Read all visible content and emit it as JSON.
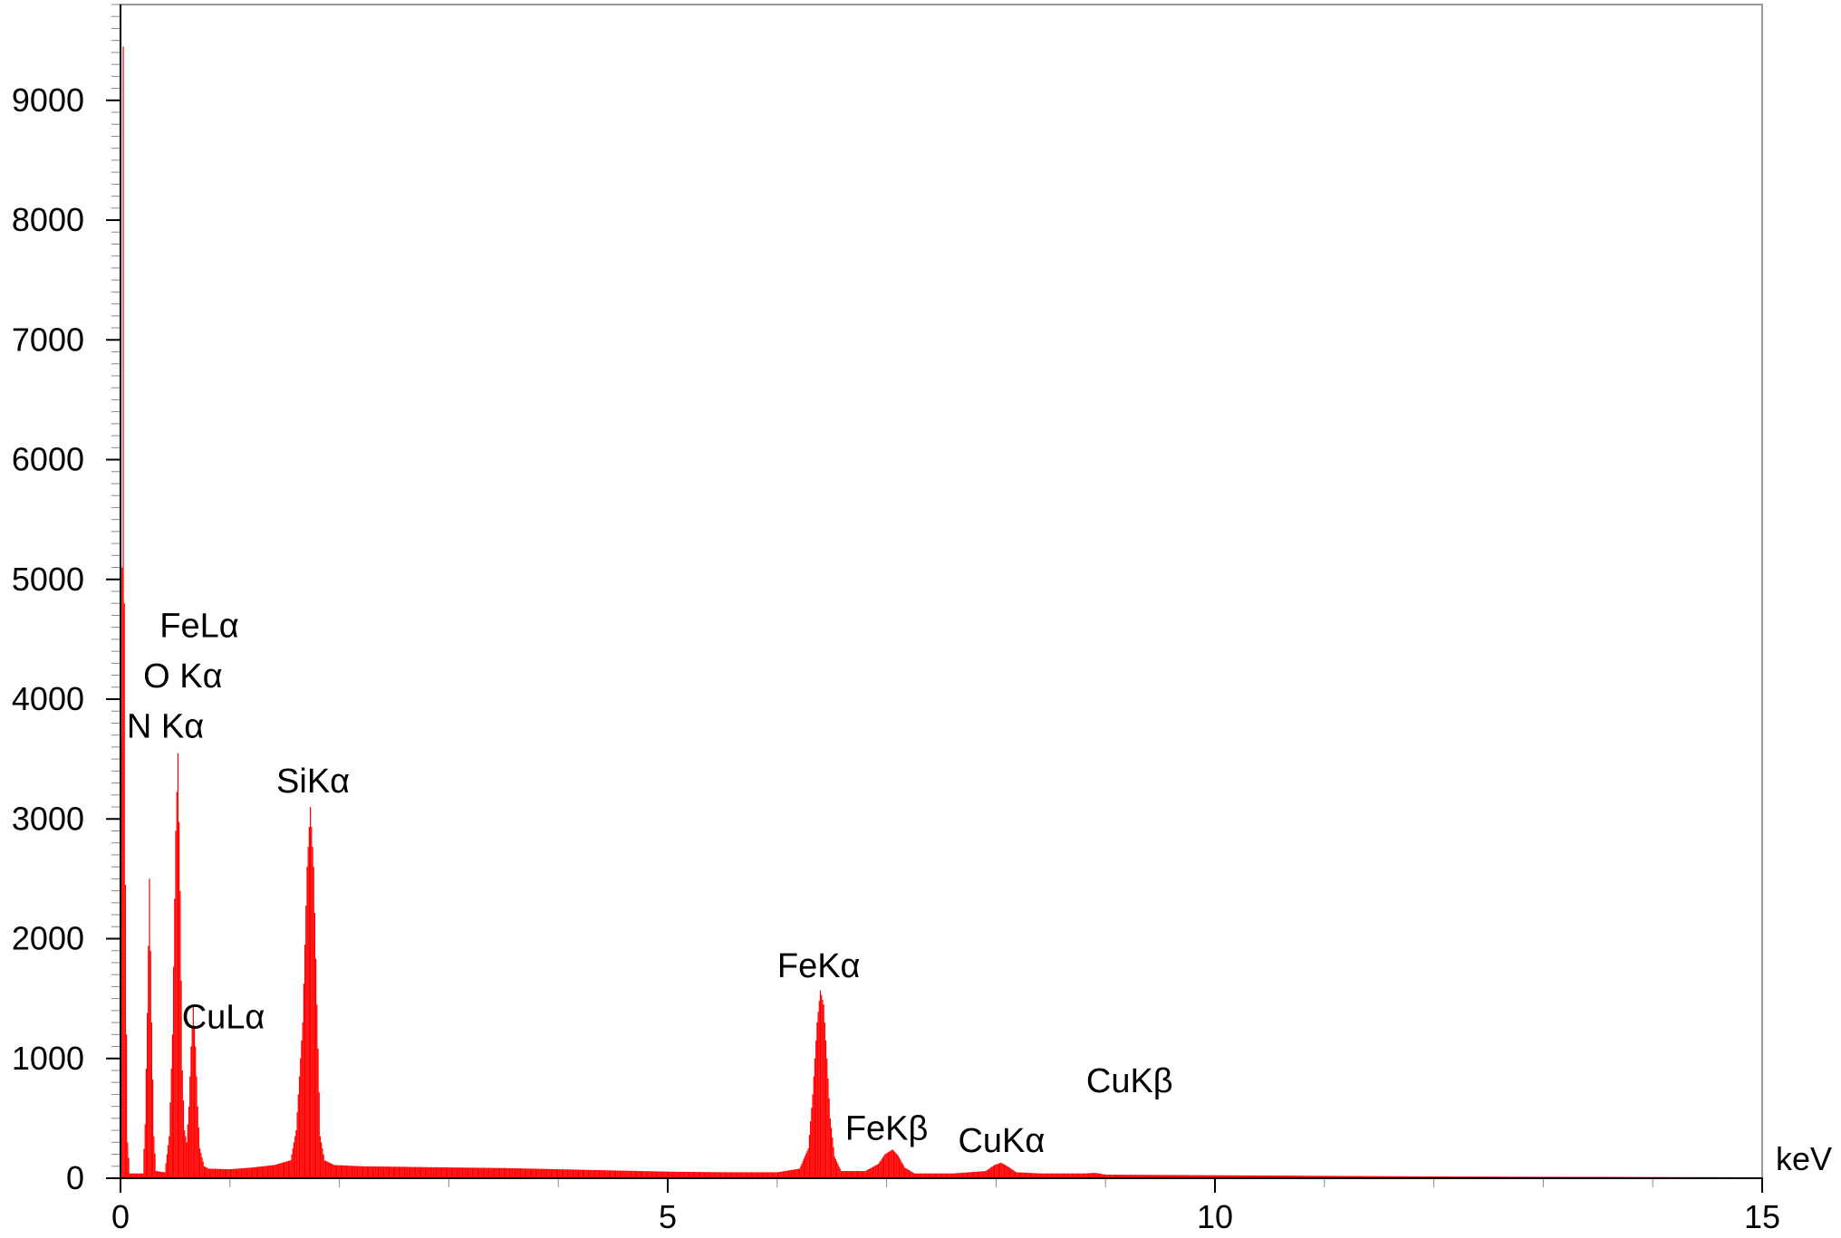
{
  "chart_data": {
    "type": "bar",
    "title": "",
    "xlabel": "keV",
    "ylabel": "",
    "xlim": [
      0,
      15
    ],
    "ylim": [
      0,
      9800
    ],
    "x_ticks": [
      {
        "value": 0,
        "label": "0"
      },
      {
        "value": 5,
        "label": "5"
      },
      {
        "value": 10,
        "label": "10"
      },
      {
        "value": 15,
        "label": "15"
      }
    ],
    "y_ticks": [
      {
        "value": 0,
        "label": "0"
      },
      {
        "value": 1000,
        "label": "1000"
      },
      {
        "value": 2000,
        "label": "2000"
      },
      {
        "value": 3000,
        "label": "3000"
      },
      {
        "value": 4000,
        "label": "4000"
      },
      {
        "value": 5000,
        "label": "5000"
      },
      {
        "value": 6000,
        "label": "6000"
      },
      {
        "value": 7000,
        "label": "7000"
      },
      {
        "value": 8000,
        "label": "8000"
      },
      {
        "value": 9000,
        "label": "9000"
      }
    ],
    "grid": false,
    "color": "#ff0000",
    "spectrum": [
      [
        0.0,
        3700
      ],
      [
        0.01,
        5100
      ],
      [
        0.02,
        9450
      ],
      [
        0.03,
        4800
      ],
      [
        0.04,
        2450
      ],
      [
        0.05,
        1200
      ],
      [
        0.06,
        300
      ],
      [
        0.08,
        40
      ],
      [
        0.2,
        40
      ],
      [
        0.22,
        450
      ],
      [
        0.24,
        1380
      ],
      [
        0.26,
        2500
      ],
      [
        0.28,
        1300
      ],
      [
        0.3,
        350
      ],
      [
        0.32,
        60
      ],
      [
        0.4,
        50
      ],
      [
        0.44,
        350
      ],
      [
        0.47,
        1200
      ],
      [
        0.5,
        2900
      ],
      [
        0.52,
        3550
      ],
      [
        0.54,
        2400
      ],
      [
        0.56,
        900
      ],
      [
        0.58,
        400
      ],
      [
        0.6,
        300
      ],
      [
        0.62,
        600
      ],
      [
        0.64,
        1100
      ],
      [
        0.66,
        1450
      ],
      [
        0.68,
        1100
      ],
      [
        0.7,
        600
      ],
      [
        0.72,
        250
      ],
      [
        0.76,
        100
      ],
      [
        0.8,
        80
      ],
      [
        1.0,
        75
      ],
      [
        1.2,
        90
      ],
      [
        1.4,
        110
      ],
      [
        1.55,
        150
      ],
      [
        1.6,
        400
      ],
      [
        1.66,
        1300
      ],
      [
        1.7,
        2600
      ],
      [
        1.73,
        3100
      ],
      [
        1.76,
        2600
      ],
      [
        1.79,
        1450
      ],
      [
        1.82,
        350
      ],
      [
        1.86,
        150
      ],
      [
        1.95,
        110
      ],
      [
        2.2,
        100
      ],
      [
        2.6,
        95
      ],
      [
        3.0,
        90
      ],
      [
        3.5,
        85
      ],
      [
        4.0,
        75
      ],
      [
        4.5,
        65
      ],
      [
        5.0,
        55
      ],
      [
        5.5,
        50
      ],
      [
        6.0,
        50
      ],
      [
        6.2,
        80
      ],
      [
        6.28,
        250
      ],
      [
        6.32,
        700
      ],
      [
        6.36,
        1300
      ],
      [
        6.39,
        1570
      ],
      [
        6.42,
        1450
      ],
      [
        6.45,
        1000
      ],
      [
        6.48,
        500
      ],
      [
        6.52,
        180
      ],
      [
        6.58,
        60
      ],
      [
        6.8,
        60
      ],
      [
        6.92,
        120
      ],
      [
        6.98,
        200
      ],
      [
        7.05,
        240
      ],
      [
        7.1,
        190
      ],
      [
        7.16,
        90
      ],
      [
        7.25,
        40
      ],
      [
        7.6,
        40
      ],
      [
        7.9,
        60
      ],
      [
        7.98,
        110
      ],
      [
        8.04,
        130
      ],
      [
        8.1,
        100
      ],
      [
        8.18,
        50
      ],
      [
        8.4,
        40
      ],
      [
        8.8,
        40
      ],
      [
        8.9,
        45
      ],
      [
        9.0,
        30
      ],
      [
        10.0,
        25
      ],
      [
        11.0,
        20
      ],
      [
        12.0,
        15
      ],
      [
        13.0,
        12
      ],
      [
        14.0,
        10
      ],
      [
        15.0,
        8
      ]
    ],
    "annotations": [
      {
        "text": "FeLα",
        "x": 0.72,
        "y": 4520
      },
      {
        "text": "O Kα",
        "x": 0.57,
        "y": 4100
      },
      {
        "text": "N Kα",
        "x": 0.41,
        "y": 3680
      },
      {
        "text": "SiKα",
        "x": 1.76,
        "y": 3220
      },
      {
        "text": "CuLα",
        "x": 0.94,
        "y": 1250
      },
      {
        "text": "FeKα",
        "x": 6.38,
        "y": 1680
      },
      {
        "text": "FeKβ",
        "x": 7.0,
        "y": 320
      },
      {
        "text": "CuKα",
        "x": 8.05,
        "y": 220
      },
      {
        "text": "CuKβ",
        "x": 9.22,
        "y": 720
      }
    ]
  }
}
